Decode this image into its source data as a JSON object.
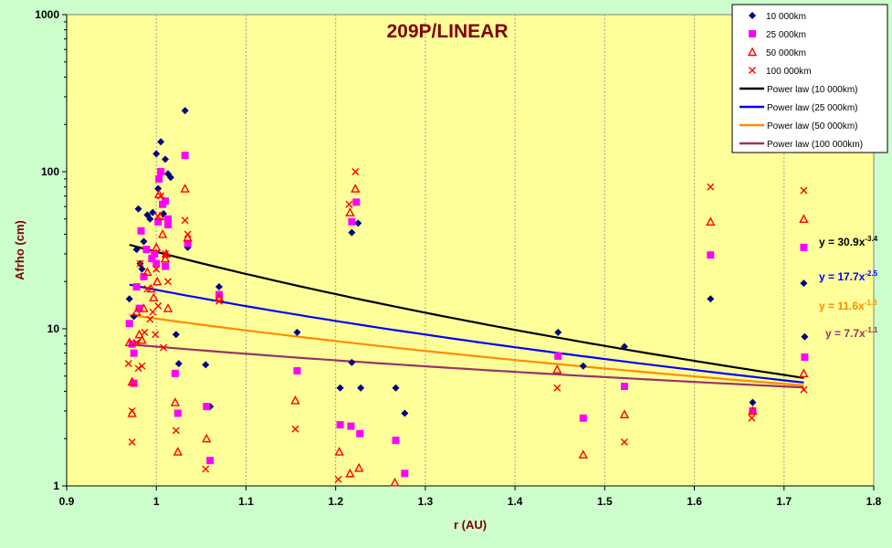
{
  "chart_data": {
    "type": "scatter",
    "title": "209P/LINEAR",
    "xlabel": "r (AU)",
    "ylabel": "Afrho (cm)",
    "xlim": [
      0.9,
      1.8
    ],
    "ylim": [
      1,
      1000
    ],
    "yscale": "log",
    "grid": "vertical",
    "legend_position": "top-right",
    "x_ticks": [
      "0.9",
      "1",
      "1.1",
      "1.2",
      "1.3",
      "1.4",
      "1.5",
      "1.6",
      "1.7",
      "1.8"
    ],
    "y_ticks": [
      "1",
      "10",
      "100",
      "1000"
    ],
    "series": [
      {
        "name": "10 000km",
        "marker": "diamond",
        "color": "#000080",
        "points": [
          [
            0.97,
            15.5
          ],
          [
            0.975,
            12.0
          ],
          [
            0.978,
            32.0
          ],
          [
            0.98,
            58.0
          ],
          [
            0.982,
            26.0
          ],
          [
            0.984,
            24.0
          ],
          [
            0.986,
            36.0
          ],
          [
            0.99,
            53.0
          ],
          [
            0.993,
            50.0
          ],
          [
            0.996,
            55.0
          ],
          [
            1.0,
            130.0
          ],
          [
            1.002,
            78.0
          ],
          [
            1.005,
            155.0
          ],
          [
            1.008,
            54.0
          ],
          [
            1.01,
            120.0
          ],
          [
            1.013,
            97.0
          ],
          [
            1.016,
            92.0
          ],
          [
            1.022,
            9.2
          ],
          [
            1.025,
            6.0
          ],
          [
            1.032,
            245.0
          ],
          [
            1.035,
            33.0
          ],
          [
            1.055,
            5.9
          ],
          [
            1.06,
            3.2
          ],
          [
            1.07,
            18.5
          ],
          [
            1.157,
            9.5
          ],
          [
            1.205,
            4.2
          ],
          [
            1.218,
            6.1
          ],
          [
            1.218,
            41.0
          ],
          [
            1.225,
            47.0
          ],
          [
            1.228,
            4.2
          ],
          [
            1.267,
            4.2
          ],
          [
            1.277,
            2.9
          ],
          [
            1.448,
            9.5
          ],
          [
            1.476,
            5.8
          ],
          [
            1.522,
            7.7
          ],
          [
            1.618,
            15.5
          ],
          [
            1.665,
            3.4
          ],
          [
            1.722,
            19.5
          ],
          [
            1.723,
            8.9
          ]
        ]
      },
      {
        "name": "25 000km",
        "marker": "square",
        "color": "#ff00ff",
        "points": [
          [
            0.97,
            10.8
          ],
          [
            0.973,
            8.0
          ],
          [
            0.975,
            7.0
          ],
          [
            0.975,
            4.5
          ],
          [
            0.978,
            18.5
          ],
          [
            0.981,
            13.5
          ],
          [
            0.983,
            42.0
          ],
          [
            0.986,
            21.5
          ],
          [
            0.989,
            32.0
          ],
          [
            0.995,
            28.0
          ],
          [
            0.998,
            30.0
          ],
          [
            1.0,
            26.0
          ],
          [
            1.002,
            48.0
          ],
          [
            1.003,
            90.0
          ],
          [
            1.005,
            100.0
          ],
          [
            1.007,
            62.0
          ],
          [
            1.01,
            65.0
          ],
          [
            1.013,
            50.0
          ],
          [
            1.013,
            46.0
          ],
          [
            1.01,
            25.0
          ],
          [
            1.021,
            5.2
          ],
          [
            1.024,
            2.9
          ],
          [
            1.032,
            127.0
          ],
          [
            1.035,
            35.0
          ],
          [
            1.056,
            3.2
          ],
          [
            1.06,
            1.45
          ],
          [
            1.07,
            16.5
          ],
          [
            1.157,
            5.4
          ],
          [
            1.205,
            2.45
          ],
          [
            1.217,
            2.4
          ],
          [
            1.218,
            48.0
          ],
          [
            1.223,
            64.0
          ],
          [
            1.227,
            2.15
          ],
          [
            1.267,
            1.95
          ],
          [
            1.277,
            1.2
          ],
          [
            1.448,
            6.7
          ],
          [
            1.476,
            2.7
          ],
          [
            1.522,
            4.3
          ],
          [
            1.618,
            29.5
          ],
          [
            1.665,
            3.0
          ],
          [
            1.722,
            33.0
          ],
          [
            1.723,
            6.6
          ]
        ]
      },
      {
        "name": "50 000km",
        "marker": "triangle",
        "color": "#ff0000",
        "points": [
          [
            0.97,
            8.2
          ],
          [
            0.973,
            4.6
          ],
          [
            0.973,
            2.9
          ],
          [
            0.978,
            12.8
          ],
          [
            0.981,
            9.2
          ],
          [
            0.984,
            8.5
          ],
          [
            0.986,
            13.5
          ],
          [
            0.99,
            23.0
          ],
          [
            0.994,
            18.0
          ],
          [
            0.997,
            15.8
          ],
          [
            1.0,
            33.0
          ],
          [
            1.001,
            20.0
          ],
          [
            1.003,
            72.0
          ],
          [
            1.004,
            52.0
          ],
          [
            1.007,
            40.0
          ],
          [
            1.01,
            28.0
          ],
          [
            1.011,
            30.0
          ],
          [
            1.013,
            13.5
          ],
          [
            1.021,
            3.4
          ],
          [
            1.024,
            1.65
          ],
          [
            1.032,
            78.0
          ],
          [
            1.035,
            38.0
          ],
          [
            1.056,
            2.0
          ],
          [
            1.07,
            15.8
          ],
          [
            1.155,
            3.5
          ],
          [
            1.204,
            1.65
          ],
          [
            1.216,
            1.2
          ],
          [
            1.216,
            55.0
          ],
          [
            1.222,
            78.0
          ],
          [
            1.226,
            1.3
          ],
          [
            1.266,
            1.05
          ],
          [
            1.447,
            5.5
          ],
          [
            1.476,
            1.58
          ],
          [
            1.522,
            2.85
          ],
          [
            1.618,
            48.0
          ],
          [
            1.665,
            3.0
          ],
          [
            1.722,
            50.0
          ],
          [
            1.722,
            5.2
          ]
        ]
      },
      {
        "name": "100 000km",
        "marker": "cross",
        "color": "#ff0000",
        "points": [
          [
            0.969,
            6.0
          ],
          [
            0.973,
            3.0
          ],
          [
            0.973,
            1.9
          ],
          [
            0.978,
            8.2
          ],
          [
            0.98,
            5.6
          ],
          [
            0.982,
            26.0
          ],
          [
            0.984,
            5.8
          ],
          [
            0.987,
            9.5
          ],
          [
            0.99,
            18.0
          ],
          [
            0.993,
            11.5
          ],
          [
            0.996,
            12.8
          ],
          [
            0.999,
            9.2
          ],
          [
            1.0,
            24.0
          ],
          [
            1.002,
            14.0
          ],
          [
            1.002,
            52.0
          ],
          [
            1.005,
            70.0
          ],
          [
            1.008,
            7.6
          ],
          [
            1.01,
            30.0
          ],
          [
            1.013,
            20.0
          ],
          [
            1.022,
            2.25
          ],
          [
            1.032,
            49.0
          ],
          [
            1.035,
            40.0
          ],
          [
            1.055,
            1.28
          ],
          [
            1.07,
            15.0
          ],
          [
            1.155,
            2.3
          ],
          [
            1.203,
            1.1
          ],
          [
            1.215,
            62.0
          ],
          [
            1.222,
            100.0
          ],
          [
            1.447,
            4.2
          ],
          [
            1.522,
            1.9
          ],
          [
            1.618,
            80.0
          ],
          [
            1.664,
            2.7
          ],
          [
            1.722,
            76.0
          ],
          [
            1.722,
            4.1
          ]
        ]
      }
    ],
    "fits": [
      {
        "name": "Power law (10 000km)",
        "a": 30.9,
        "b": -3.4,
        "color": "#000000",
        "equation": "y = 30.9x",
        "exponent": "-3.4"
      },
      {
        "name": "Power law (25 000km)",
        "a": 17.7,
        "b": -2.5,
        "color": "#0000ff",
        "equation": "y = 17.7x",
        "exponent": "-2.5"
      },
      {
        "name": "Power law (50 000km)",
        "a": 11.6,
        "b": -1.8,
        "color": "#ff8c00",
        "equation": "y = 11.6x",
        "exponent": "-1.8"
      },
      {
        "name": "Power law (100 000km)",
        "a": 7.7,
        "b": -1.1,
        "color": "#993366",
        "equation": "y = 7.7x",
        "exponent": "-1.1"
      }
    ],
    "fit_range": [
      0.97,
      1.722
    ]
  }
}
